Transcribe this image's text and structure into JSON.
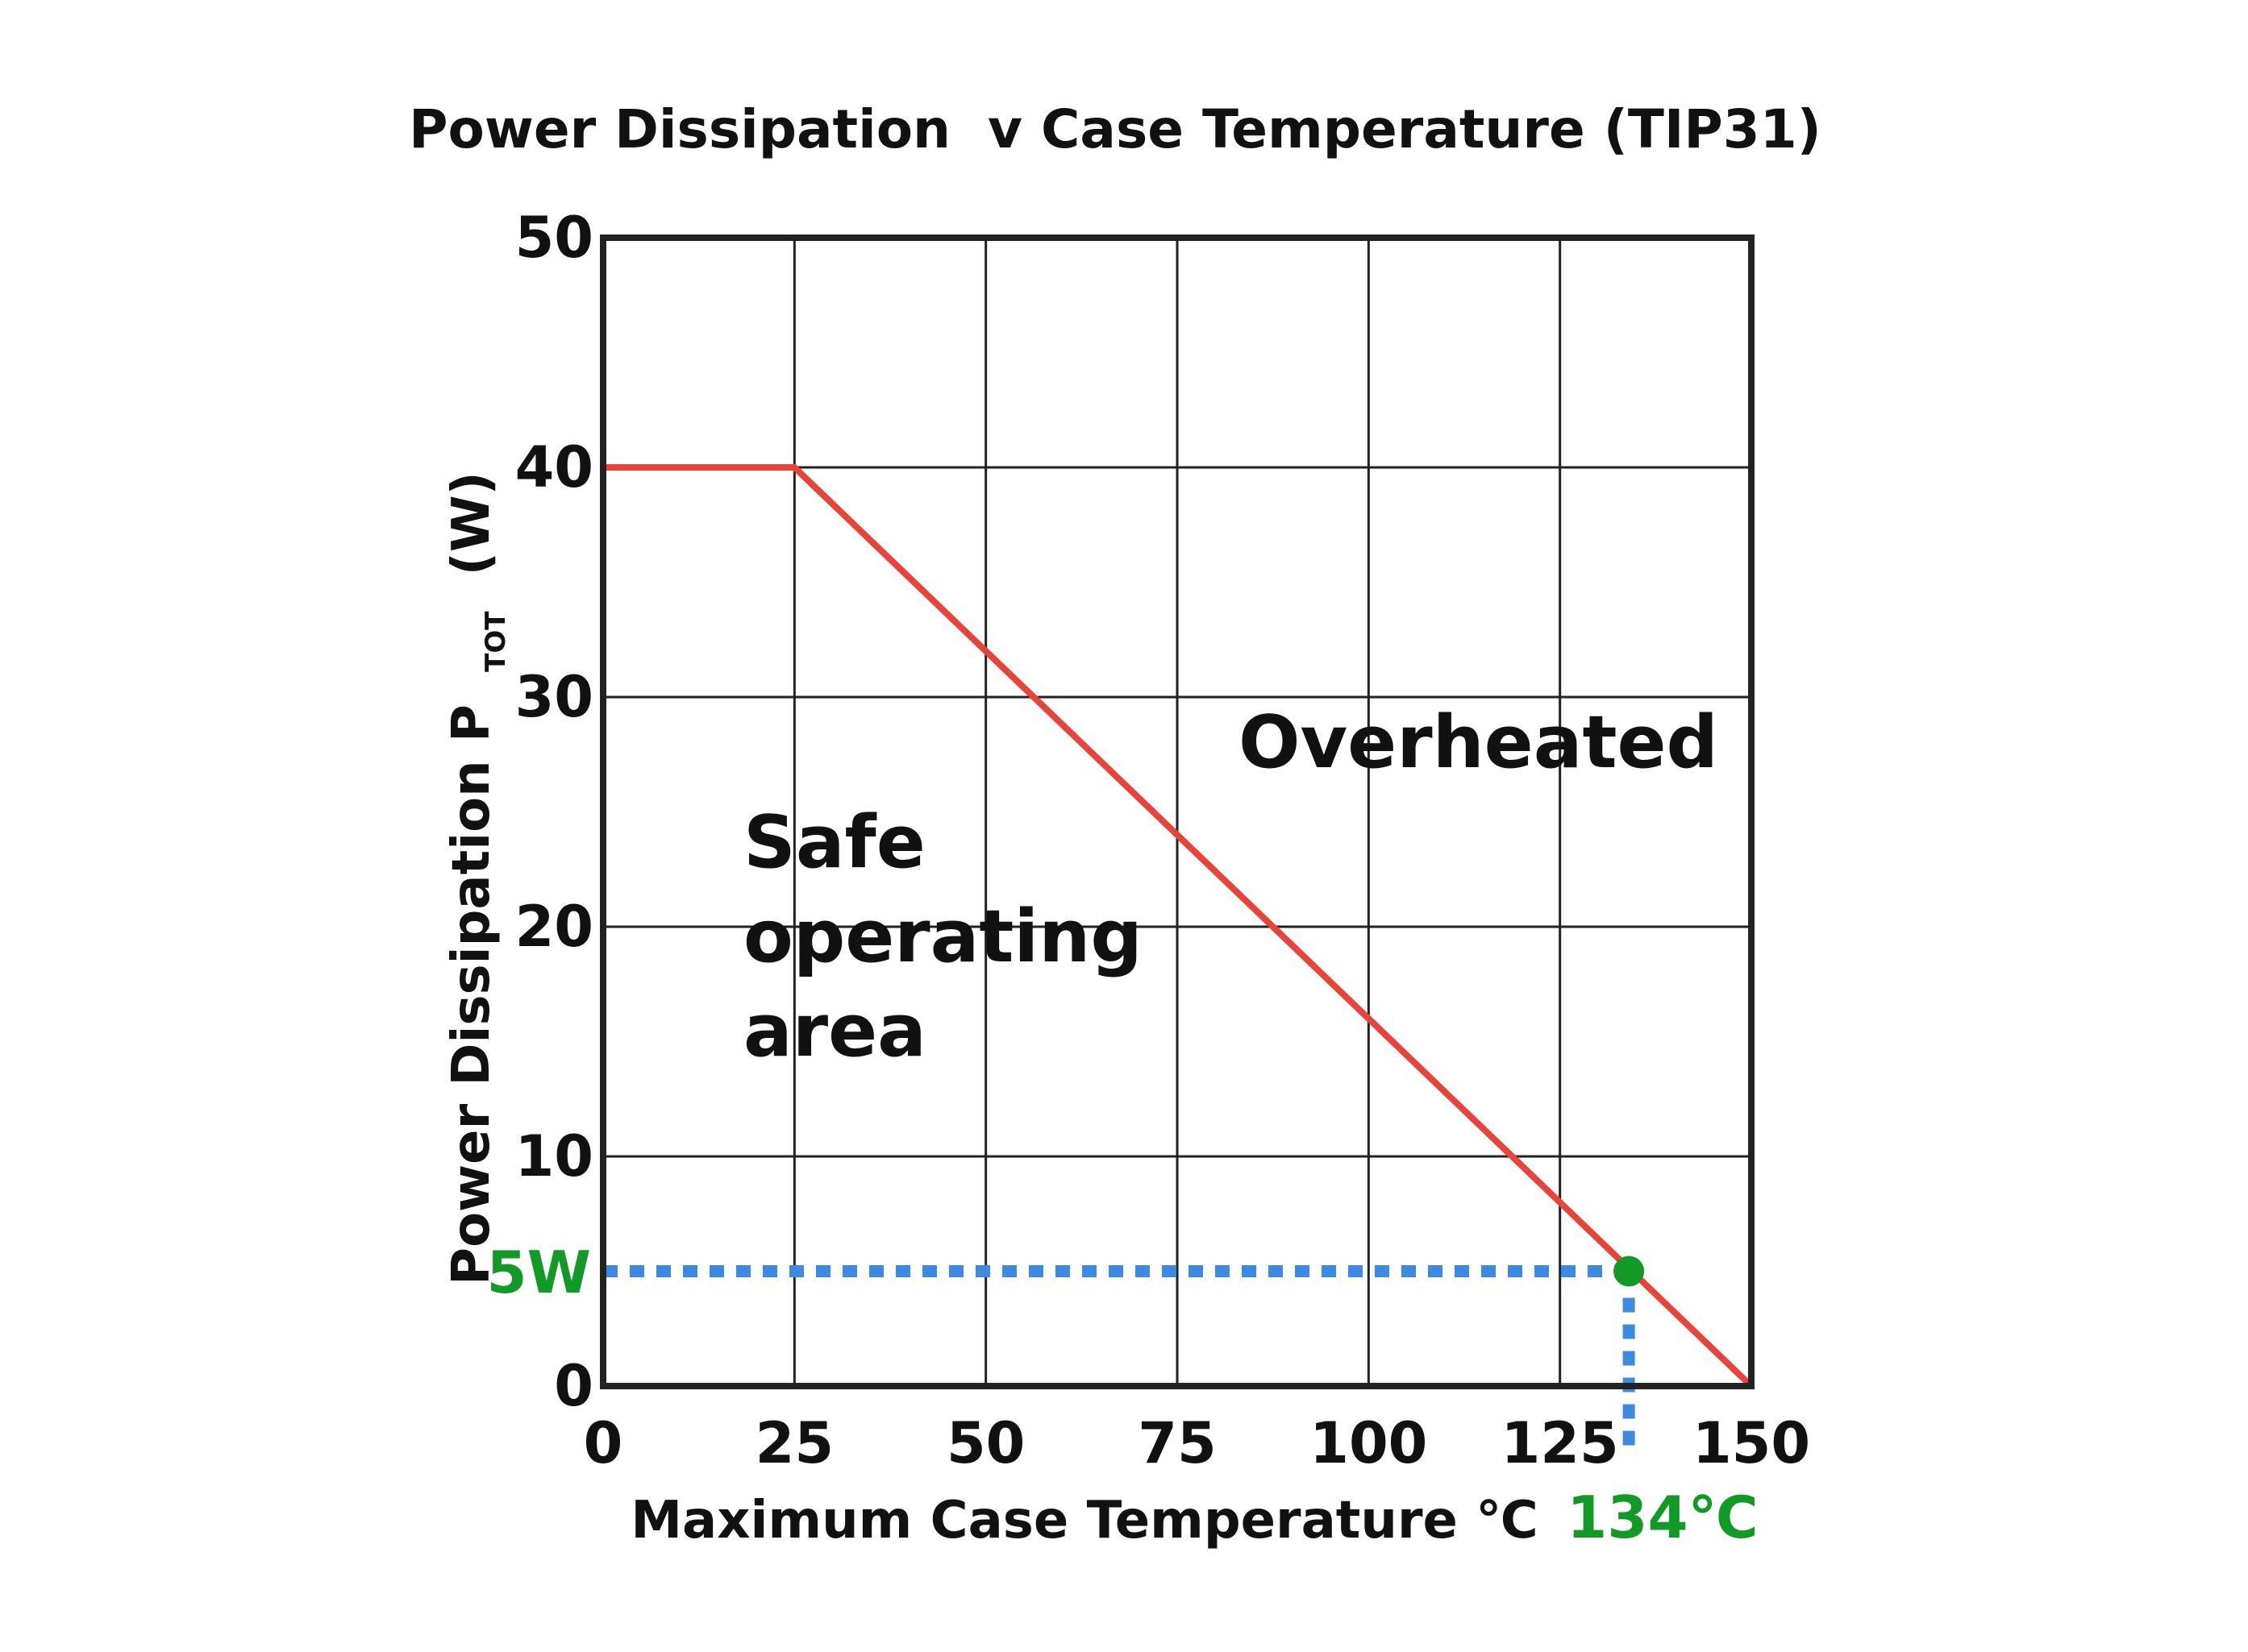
{
  "chart_data": {
    "type": "line",
    "title": "Power Dissipation  v Case Temperature (TIP31)",
    "xlabel": "Maximum Case Temperature ℃",
    "ylabel": {
      "main": "Power Dissipation P",
      "subscript": "TOT",
      "suffix": "(W)"
    },
    "xlim": [
      0,
      150
    ],
    "ylim": [
      0,
      50
    ],
    "xticks": [
      0,
      25,
      50,
      75,
      100,
      125,
      150
    ],
    "xtick_labels": [
      "0",
      "25",
      "50",
      "75",
      "100",
      "125",
      "150"
    ],
    "yticks": [
      0,
      10,
      20,
      30,
      40,
      50
    ],
    "ytick_labels": [
      "0",
      "10",
      "20",
      "30",
      "40",
      "50"
    ],
    "grid": true,
    "series": [
      {
        "x": [
          0,
          25,
          150
        ],
        "y": [
          40,
          40,
          0
        ],
        "color": "#e8443a"
      }
    ],
    "marker": {
      "x": 134,
      "y": 5,
      "color": "#119a25",
      "guide_color": "#3c8be0"
    },
    "annotations": {
      "x_marker_label": "134℃",
      "y_marker_label": "5W",
      "safe_area_lines": [
        "Safe",
        "operating",
        "area"
      ],
      "overheated": "Overheated"
    },
    "colors": {
      "axes": "#222222",
      "grid": "#222222",
      "text": "#111111",
      "highlight": "#119a25"
    }
  }
}
